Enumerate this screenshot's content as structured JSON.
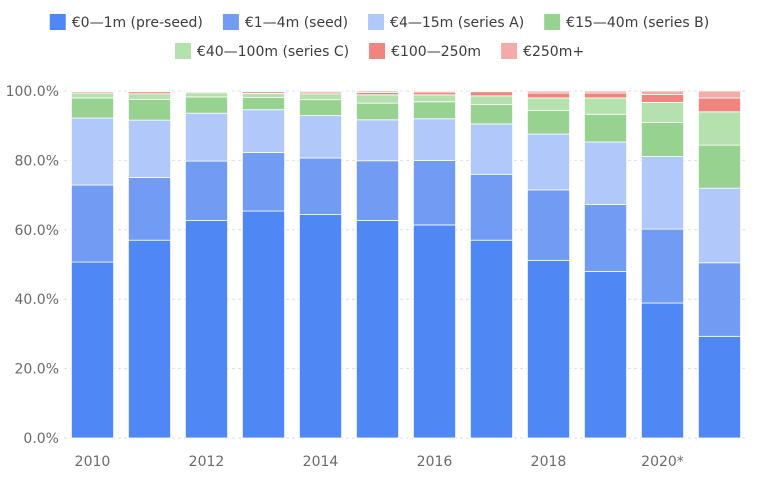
{
  "chart_data": {
    "type": "bar",
    "stacked": true,
    "title": "",
    "xlabel": "",
    "ylabel": "",
    "ylim": [
      0,
      100
    ],
    "y_ticks": [
      "0.0%",
      "20.0%",
      "40.0%",
      "60.0%",
      "80.0%",
      "100.0%"
    ],
    "grid": true,
    "legend_position": "top",
    "categories": [
      "2010",
      "2011",
      "2012",
      "2013",
      "2014",
      "2015",
      "2016",
      "2017",
      "2018",
      "2019",
      "2020*",
      "2021"
    ],
    "x_tick_labels": [
      "2010",
      "",
      "2012",
      "",
      "2014",
      "",
      "2016",
      "",
      "2018",
      "",
      "2020*",
      ""
    ],
    "series": [
      {
        "name": "€0—1m (pre-seed)",
        "color": "#4f87f4",
        "values": [
          50.7,
          57.0,
          62.7,
          65.4,
          64.4,
          62.7,
          61.4,
          57.0,
          51.2,
          48.0,
          38.9,
          29.3
        ]
      },
      {
        "name": "€1—4m (seed)",
        "color": "#729cf3",
        "values": [
          22.2,
          18.1,
          17.1,
          16.9,
          16.3,
          17.2,
          18.6,
          19.0,
          20.3,
          19.3,
          21.3,
          21.2
        ]
      },
      {
        "name": "€4—15m (series A)",
        "color": "#b1c8fb",
        "values": [
          19.3,
          16.5,
          13.8,
          12.3,
          12.2,
          11.8,
          12.0,
          14.5,
          16.1,
          18.0,
          20.9,
          21.5
        ]
      },
      {
        "name": "€15—40m (series B)",
        "color": "#98d290",
        "values": [
          5.8,
          6.0,
          4.7,
          3.5,
          4.6,
          4.8,
          4.9,
          5.6,
          6.8,
          8.0,
          9.8,
          12.4
        ]
      },
      {
        "name": "€40—100m (series C)",
        "color": "#b4e1ae",
        "values": [
          1.4,
          1.6,
          1.2,
          1.2,
          1.7,
          2.4,
          2.0,
          2.5,
          3.6,
          4.7,
          5.8,
          9.6
        ]
      },
      {
        "name": "€100—250m",
        "color": "#f0847f",
        "values": [
          0.4,
          0.6,
          0.3,
          0.5,
          0.5,
          0.7,
          0.8,
          1.2,
          1.4,
          1.4,
          2.3,
          4.0
        ]
      },
      {
        "name": "€250m+",
        "color": "#f4aaa8",
        "values": [
          0.2,
          0.2,
          0.2,
          0.2,
          0.3,
          0.4,
          0.3,
          0.2,
          0.6,
          0.6,
          1.0,
          2.0
        ]
      }
    ]
  }
}
